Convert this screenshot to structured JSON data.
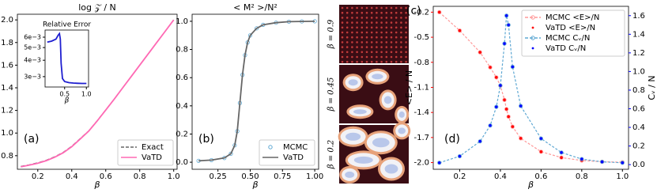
{
  "chart_data": [
    {
      "type": "line",
      "title": "log 𝒵 / N",
      "xlabel": "β",
      "panel_label": "(a)",
      "x": [
        0.1,
        0.15,
        0.2,
        0.25,
        0.3,
        0.35,
        0.4,
        0.45,
        0.5,
        0.55,
        0.6,
        0.65,
        0.7,
        0.75,
        0.8,
        0.85,
        0.9,
        0.95,
        1.0
      ],
      "series": [
        {
          "name": "Exact",
          "color": "#666666",
          "style": "dashed",
          "values": [
            0.706,
            0.72,
            0.737,
            0.76,
            0.791,
            0.83,
            0.884,
            0.952,
            1.02,
            1.11,
            1.205,
            1.3,
            1.4,
            1.5,
            1.6,
            1.7,
            1.8,
            1.9,
            2.0
          ]
        },
        {
          "name": "VaTD",
          "color": "#ff69b4",
          "style": "solid",
          "values": [
            0.702,
            0.716,
            0.733,
            0.756,
            0.787,
            0.826,
            0.88,
            0.948,
            1.018,
            1.108,
            1.203,
            1.3,
            1.4,
            1.5,
            1.6,
            1.7,
            1.8,
            1.9,
            2.0
          ]
        }
      ],
      "xlim": [
        0.08,
        1.02
      ],
      "xticks": [
        0.2,
        0.4,
        0.6,
        0.8,
        {
          "value": 1.0,
          "label": "1.0"
        }
      ],
      "ylim": [
        0.68,
        2.05
      ],
      "yticks": [
        0.8,
        {
          "value": 1.0,
          "label": "1.0"
        },
        1.2,
        1.4,
        1.6,
        1.8,
        {
          "value": 2.0,
          "label": "2.0"
        }
      ],
      "legend": "lower right"
    },
    {
      "type": "line",
      "title": "Relative Error",
      "xlabel": "β",
      "log_y": true,
      "x": [
        0.1,
        0.2,
        0.3,
        0.35,
        0.38,
        0.4,
        0.42,
        0.45,
        0.5,
        0.6,
        0.7,
        0.8,
        0.9,
        1.0
      ],
      "series": [
        {
          "color": "#1f1fd0",
          "style": "solid",
          "values": [
            0.0055,
            0.0056,
            0.0058,
            0.0062,
            0.0064,
            0.0058,
            0.0038,
            0.0029,
            0.00275,
            0.0027,
            0.00268,
            0.00267,
            0.00266,
            0.00266
          ]
        }
      ],
      "xlim": [
        0.05,
        1.05
      ],
      "xticks": [
        0.5,
        {
          "value": 1.0,
          "label": "1.0"
        }
      ],
      "ylim": [
        0.0025,
        0.0068
      ],
      "yticks": [
        {
          "value": 0.003,
          "label": "3e−3"
        },
        {
          "value": 0.004,
          "label": "4e−3"
        },
        {
          "value": 0.005,
          "label": "5e−3"
        },
        {
          "value": 0.006,
          "label": "6e−3"
        }
      ]
    },
    {
      "type": "line",
      "title": "< M² >/N²",
      "xlabel": "β",
      "panel_label": "(b)",
      "x": [
        0.1,
        0.2,
        0.3,
        0.35,
        0.38,
        0.4,
        0.42,
        0.44,
        0.46,
        0.48,
        0.5,
        0.55,
        0.6,
        0.7,
        0.8,
        0.9,
        1.0
      ],
      "series": [
        {
          "name": "MCMC",
          "color": "#5fa8d3",
          "style": "open",
          "values": [
            0.01,
            0.015,
            0.03,
            0.06,
            0.12,
            0.22,
            0.42,
            0.62,
            0.76,
            0.85,
            0.9,
            0.95,
            0.975,
            0.99,
            0.997,
            0.999,
            1.0
          ]
        },
        {
          "name": "VaTD",
          "color": "#666666",
          "style": "solid",
          "values": [
            0.01,
            0.015,
            0.03,
            0.06,
            0.12,
            0.22,
            0.42,
            0.62,
            0.76,
            0.85,
            0.9,
            0.95,
            0.975,
            0.99,
            0.997,
            0.999,
            1.0
          ]
        }
      ],
      "xlim": [
        0.05,
        1.03
      ],
      "xticks": [
        0.25,
        {
          "value": 0.5,
          "label": "0.50"
        },
        0.75,
        {
          "value": 1.0,
          "label": "1.00"
        }
      ],
      "ylim": [
        -0.05,
        1.05
      ],
      "yticks": [
        {
          "value": 0,
          "label": "0.0"
        },
        0.2,
        0.4,
        0.6,
        0.8,
        {
          "value": 1.0,
          "label": "1.0"
        }
      ],
      "legend": "lower right"
    },
    {
      "type": "image",
      "panel_label": "(c)",
      "panels": [
        {
          "label": "β = 0.9"
        },
        {
          "label": "β = 0.45"
        },
        {
          "label": "β = 0.2"
        }
      ]
    },
    {
      "type": "line",
      "xlabel": "β",
      "ylabel": "<E> / N",
      "y2label": "Cᵥ / N",
      "panel_label": "(d)",
      "ycolor": "#ff0000",
      "y2color": "#0000ff",
      "x": [
        0.1,
        0.2,
        0.3,
        0.35,
        0.38,
        0.4,
        0.42,
        0.43,
        0.44,
        0.46,
        0.5,
        0.6,
        0.7,
        0.8,
        0.9,
        1.0
      ],
      "series": [
        {
          "name": "MCMC  <E>/N",
          "color": "#ff9999",
          "style": "dashed-open",
          "values": [
            -0.2,
            -0.42,
            -0.68,
            -0.86,
            -0.98,
            -1.08,
            -1.25,
            -1.36,
            -1.45,
            -1.57,
            -1.71,
            -1.87,
            -1.94,
            -1.975,
            -1.99,
            -1.996
          ]
        },
        {
          "name": "VaTD  <E>/N",
          "color": "#ff0000",
          "style": "dots",
          "values": [
            -0.2,
            -0.42,
            -0.68,
            -0.86,
            -0.98,
            -1.08,
            -1.25,
            -1.36,
            -1.45,
            -1.57,
            -1.71,
            -1.87,
            -1.94,
            -1.975,
            -1.99,
            -1.996
          ]
        },
        {
          "name": "MCMC Cᵥ/N",
          "color": "#5fa8d3",
          "style": "dashed-open",
          "axis": "y2",
          "values": [
            0.02,
            0.09,
            0.25,
            0.42,
            0.62,
            0.85,
            1.3,
            1.6,
            1.5,
            1.05,
            0.63,
            0.28,
            0.13,
            0.06,
            0.03,
            0.02
          ]
        },
        {
          "name": "VaTD Cᵥ/N",
          "color": "#0000ff",
          "style": "dots",
          "axis": "y2",
          "values": [
            0.02,
            0.09,
            0.25,
            0.42,
            0.62,
            0.85,
            1.3,
            1.6,
            1.5,
            1.05,
            0.63,
            0.28,
            0.13,
            0.06,
            0.03,
            0.02
          ]
        }
      ],
      "xlim": [
        0.07,
        1.03
      ],
      "xticks": [
        0.2,
        0.4,
        0.6,
        0.8,
        {
          "value": 1.0,
          "label": "1.0"
        }
      ],
      "ylim": [
        -2.08,
        -0.13
      ],
      "yticks": [
        {
          "value": -2.0,
          "label": "-2.0"
        },
        -1.7,
        -1.4,
        -1.1,
        -0.8,
        -0.5,
        -0.2
      ],
      "y2lim": [
        -0.05,
        1.7
      ],
      "y2ticks": [
        {
          "value": 0,
          "label": "0.0"
        },
        0.2,
        0.4,
        0.6,
        0.8,
        {
          "value": 1.0,
          "label": "1.0"
        },
        1.2,
        1.4,
        1.6
      ],
      "legend": "upper right"
    }
  ]
}
